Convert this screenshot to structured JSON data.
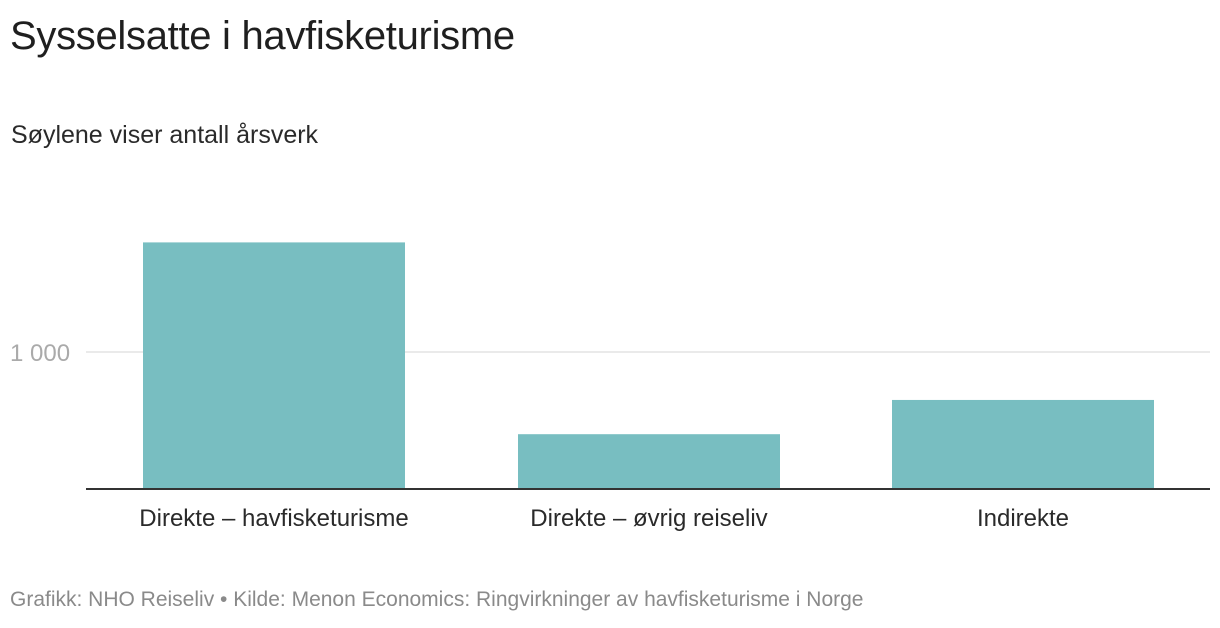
{
  "header": {
    "title": "Sysselsatte i havfisketurisme",
    "subtitle": "Søylene viser antall årsverk"
  },
  "footer": {
    "source": "Grafikk: NHO Reiseliv • Kilde: Menon Economics: Ringvirkninger av havfisketurisme i Norge"
  },
  "colors": {
    "bar": "#78bec1",
    "grid": "#e3e3e3",
    "axis": "#333333",
    "tick_label": "#aaaaaa"
  },
  "chart_data": {
    "type": "bar",
    "title": "Sysselsatte i havfisketurisme",
    "subtitle": "Søylene viser antall årsverk",
    "categories": [
      "Direkte – havfisketurisme",
      "Direkte – øvrig reiseliv",
      "Indirekte"
    ],
    "values": [
      1800,
      400,
      650
    ],
    "ylim": [
      0,
      1900
    ],
    "yticks": [
      1000
    ],
    "ytick_labels": [
      "1 000"
    ],
    "grid": true
  }
}
